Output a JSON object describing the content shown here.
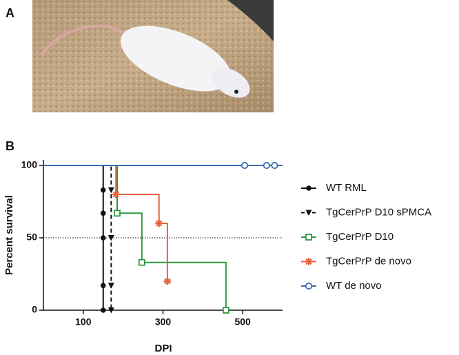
{
  "panel_a": {
    "label": "A"
  },
  "chart_data": {
    "type": "step",
    "panel_label": "B",
    "xlabel": "DPI",
    "ylabel": "Percent survival",
    "xlim": [
      0,
      600
    ],
    "xticks": [
      100,
      300,
      500
    ],
    "ylim": [
      0,
      100
    ],
    "yticks": [
      0,
      50,
      100
    ],
    "reference_line": 50,
    "legend": "right",
    "series": [
      {
        "name": "WT RML",
        "color": "#111111",
        "marker": "dot",
        "linestyle": "solid",
        "x": [
          150,
          150,
          150,
          150,
          150
        ],
        "values": [
          83,
          67,
          50,
          17,
          0
        ]
      },
      {
        "name": "TgCerPrP D10 sPMCA",
        "color": "#111111",
        "marker": "triangle",
        "linestyle": "dashed",
        "x": [
          170,
          170,
          170,
          170
        ],
        "values": [
          83,
          50,
          17,
          0
        ]
      },
      {
        "name": "TgCerPrP D10",
        "color": "#2e9a3c",
        "marker": "square",
        "linestyle": "solid",
        "x": [
          185,
          247,
          458
        ],
        "values": [
          67,
          33,
          0
        ]
      },
      {
        "name": "TgCerPrP de novo",
        "color": "#e8603c",
        "marker": "star",
        "linestyle": "solid",
        "x": [
          182,
          290,
          311
        ],
        "values": [
          80,
          60,
          20
        ]
      },
      {
        "name": "WT de novo",
        "color": "#3a6db5",
        "marker": "ring",
        "linestyle": "solid",
        "x": [
          505,
          560,
          580
        ],
        "values": [
          100,
          100,
          100
        ]
      }
    ]
  }
}
